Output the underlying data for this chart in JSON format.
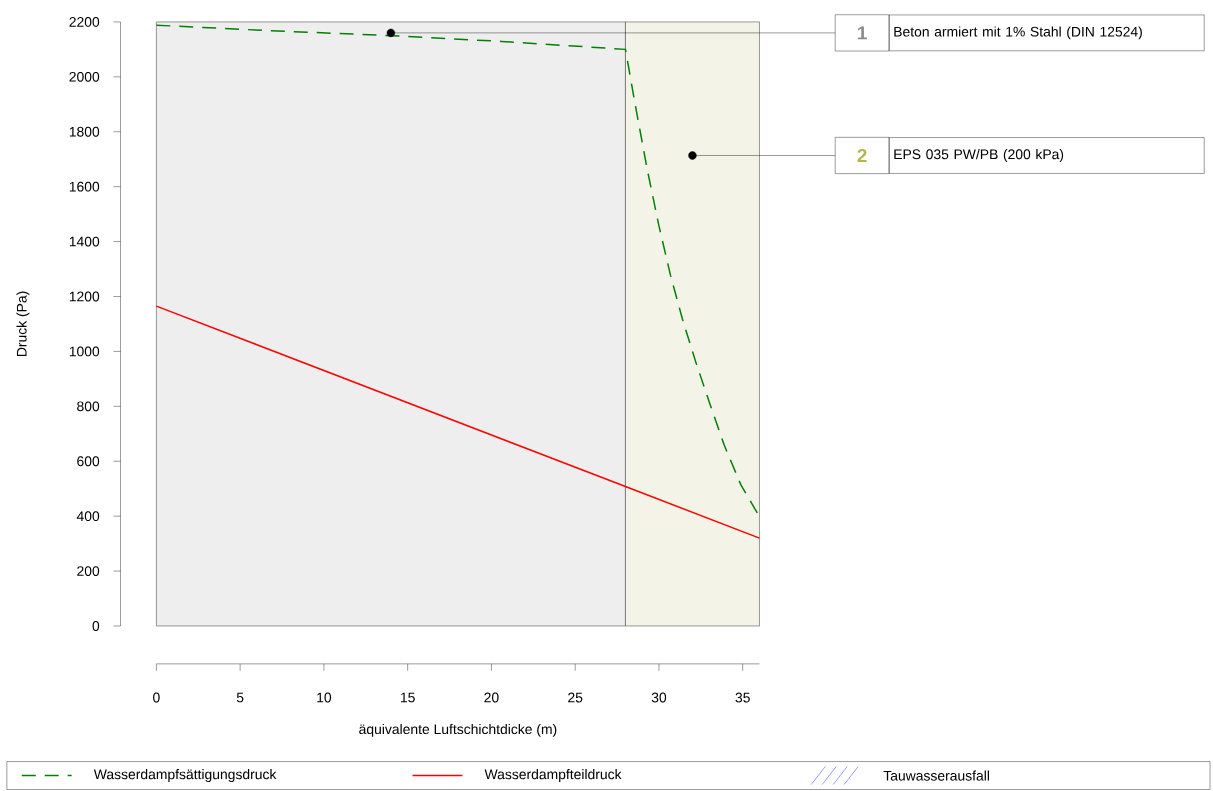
{
  "chart_data": {
    "type": "line",
    "xlabel": "äquivalente Luftschichtdicke (m)",
    "ylabel": "Druck (Pa)",
    "xlim": [
      0,
      36
    ],
    "ylim": [
      0,
      2200
    ],
    "xticks": [
      0,
      5,
      10,
      15,
      20,
      25,
      30,
      35
    ],
    "yticks": [
      0,
      200,
      400,
      600,
      800,
      1000,
      1200,
      1400,
      1600,
      1800,
      2000,
      2200
    ],
    "grid": false,
    "legend": "bottom",
    "marker": "none",
    "series": [
      {
        "name": "Wasserdampfsättigungsdruck",
        "color": "#008000",
        "line_style": "dashed",
        "x": [
          0,
          6.8,
          14,
          20.6,
          28,
          28.6,
          29.3,
          30,
          30.7,
          31.4,
          32.2,
          33,
          33.9,
          34.9,
          36
        ],
        "values": [
          2188,
          2168,
          2150,
          2129,
          2100,
          1893,
          1663,
          1457,
          1275,
          1118,
          961,
          816,
          658,
          513,
          398
        ]
      },
      {
        "name": "Wasserdampfteildruck",
        "color": "#ff0000",
        "line_style": "solid",
        "x": [
          0,
          28,
          36
        ],
        "values": [
          1165,
          508,
          320
        ]
      },
      {
        "name": "Tauwasserausfall",
        "type": "area",
        "color": "#0000ff"
      }
    ],
    "bands": [
      {
        "axis": "x",
        "from": 0,
        "to": 28,
        "label": "1",
        "color": "#eeeeee"
      },
      {
        "axis": "x",
        "from": 28,
        "to": 36,
        "label": "2",
        "color": "#f3f3e7"
      }
    ],
    "annotations": [
      "Beton armiert mit 1% Stahl (DIN 12524)",
      "EPS 035 PW/PB (200 kPa)"
    ]
  }
}
